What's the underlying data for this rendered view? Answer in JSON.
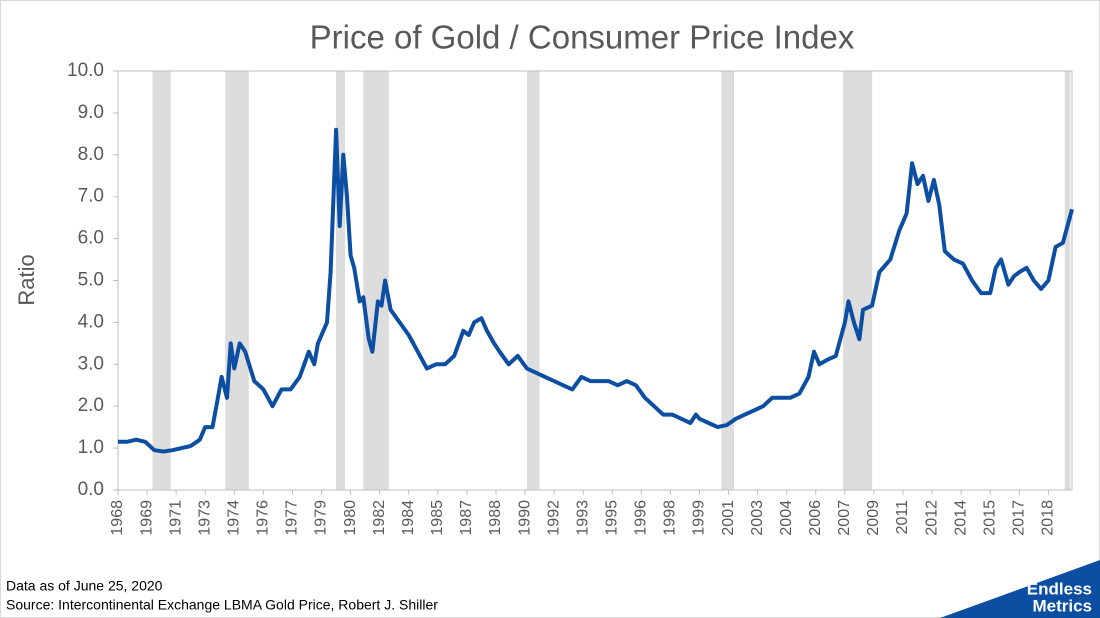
{
  "chart_data": {
    "type": "line",
    "title": "Price of Gold / Consumer Price Index",
    "y_label": "Ratio",
    "notes": [
      "Data as of June 25, 2020",
      "Source: Intercontinental Exchange LBMA Gold Price, Robert J. Shiller"
    ],
    "logo": [
      "Endless",
      "Metrics"
    ],
    "xlim": [
      1968.0,
      2020.5
    ],
    "ylim": [
      0,
      10
    ],
    "yticks": [
      {
        "value": 0,
        "label": "0.0"
      },
      {
        "value": 1,
        "label": "1.0"
      },
      {
        "value": 2,
        "label": "2.0"
      },
      {
        "value": 3,
        "label": "3.0"
      },
      {
        "value": 4,
        "label": "4.0"
      },
      {
        "value": 5,
        "label": "5.0"
      },
      {
        "value": 6,
        "label": "6.0"
      },
      {
        "value": 7,
        "label": "7.0"
      },
      {
        "value": 8,
        "label": "8.0"
      },
      {
        "value": 9,
        "label": "9.0"
      },
      {
        "value": 10,
        "label": "10.0"
      }
    ],
    "xticks": [
      {
        "value": 1968.0,
        "label": "1968"
      },
      {
        "value": 1969.6,
        "label": "1969"
      },
      {
        "value": 1971.2,
        "label": "1971"
      },
      {
        "value": 1972.8,
        "label": "1973"
      },
      {
        "value": 1974.4,
        "label": "1974"
      },
      {
        "value": 1976.0,
        "label": "1976"
      },
      {
        "value": 1977.6,
        "label": "1977"
      },
      {
        "value": 1979.2,
        "label": "1979"
      },
      {
        "value": 1980.8,
        "label": "1980"
      },
      {
        "value": 1982.4,
        "label": "1982"
      },
      {
        "value": 1984.0,
        "label": "1984"
      },
      {
        "value": 1985.6,
        "label": "1985"
      },
      {
        "value": 1987.2,
        "label": "1987"
      },
      {
        "value": 1988.8,
        "label": "1988"
      },
      {
        "value": 1990.4,
        "label": "1990"
      },
      {
        "value": 1992.0,
        "label": "1992"
      },
      {
        "value": 1993.6,
        "label": "1993"
      },
      {
        "value": 1995.2,
        "label": "1995"
      },
      {
        "value": 1996.8,
        "label": "1996"
      },
      {
        "value": 1998.4,
        "label": "1998"
      },
      {
        "value": 2000.0,
        "label": "1999"
      },
      {
        "value": 2001.6,
        "label": "2001"
      },
      {
        "value": 2003.2,
        "label": "2003"
      },
      {
        "value": 2004.8,
        "label": "2004"
      },
      {
        "value": 2006.4,
        "label": "2006"
      },
      {
        "value": 2008.0,
        "label": "2007"
      },
      {
        "value": 2009.6,
        "label": "2009"
      },
      {
        "value": 2011.2,
        "label": "2011"
      },
      {
        "value": 2012.8,
        "label": "2012"
      },
      {
        "value": 2014.4,
        "label": "2014"
      },
      {
        "value": 2016.0,
        "label": "2015"
      },
      {
        "value": 2017.6,
        "label": "2017"
      },
      {
        "value": 2019.2,
        "label": "2018"
      }
    ],
    "recessions": [
      [
        1969.9,
        1970.9
      ],
      [
        1973.9,
        1975.2
      ],
      [
        1980.0,
        1980.5
      ],
      [
        1981.5,
        1982.9
      ],
      [
        1990.5,
        1991.2
      ],
      [
        2001.2,
        2001.9
      ],
      [
        2007.9,
        2009.5
      ],
      [
        2020.1,
        2020.4
      ]
    ],
    "recession_color": "#dddddd",
    "color": "#0b4ea2",
    "x": [
      1968.0,
      1968.5,
      1969.0,
      1969.5,
      1970.0,
      1970.5,
      1971.0,
      1971.5,
      1972.0,
      1972.5,
      1972.8,
      1973.2,
      1973.5,
      1973.7,
      1974.0,
      1974.2,
      1974.4,
      1974.7,
      1975.0,
      1975.5,
      1976.0,
      1976.5,
      1977.0,
      1977.5,
      1978.0,
      1978.5,
      1978.8,
      1979.0,
      1979.5,
      1979.7,
      1980.0,
      1980.2,
      1980.4,
      1980.6,
      1980.8,
      1981.0,
      1981.3,
      1981.5,
      1981.8,
      1982.0,
      1982.3,
      1982.5,
      1982.7,
      1983.0,
      1983.5,
      1984.0,
      1984.5,
      1985.0,
      1985.5,
      1986.0,
      1986.5,
      1987.0,
      1987.3,
      1987.6,
      1988.0,
      1988.3,
      1988.7,
      1989.0,
      1989.5,
      1990.0,
      1990.5,
      1991.0,
      1991.5,
      1992.0,
      1992.5,
      1993.0,
      1993.5,
      1994.0,
      1994.5,
      1995.0,
      1995.5,
      1996.0,
      1996.5,
      1997.0,
      1997.5,
      1998.0,
      1998.5,
      1999.0,
      1999.5,
      1999.8,
      2000.0,
      2000.5,
      2001.0,
      2001.5,
      2002.0,
      2002.5,
      2003.0,
      2003.5,
      2004.0,
      2004.5,
      2005.0,
      2005.5,
      2006.0,
      2006.3,
      2006.6,
      2007.0,
      2007.5,
      2008.0,
      2008.2,
      2008.5,
      2008.8,
      2009.0,
      2009.5,
      2009.9,
      2010.5,
      2011.0,
      2011.4,
      2011.7,
      2012.0,
      2012.3,
      2012.6,
      2012.9,
      2013.2,
      2013.5,
      2014.0,
      2014.5,
      2015.0,
      2015.5,
      2016.0,
      2016.3,
      2016.6,
      2017.0,
      2017.3,
      2017.6,
      2018.0,
      2018.4,
      2018.8,
      2019.2,
      2019.6,
      2020.0,
      2020.5
    ],
    "values": [
      1.15,
      1.15,
      1.2,
      1.15,
      0.95,
      0.92,
      0.95,
      1.0,
      1.05,
      1.2,
      1.5,
      1.5,
      2.2,
      2.7,
      2.2,
      3.5,
      2.9,
      3.5,
      3.3,
      2.6,
      2.4,
      2.0,
      2.4,
      2.4,
      2.7,
      3.3,
      3.0,
      3.5,
      4.0,
      5.2,
      8.6,
      6.3,
      8.0,
      7.0,
      5.6,
      5.3,
      4.5,
      4.6,
      3.6,
      3.3,
      4.5,
      4.4,
      5.0,
      4.3,
      4.0,
      3.7,
      3.3,
      2.9,
      3.0,
      3.0,
      3.2,
      3.8,
      3.7,
      4.0,
      4.1,
      3.8,
      3.5,
      3.3,
      3.0,
      3.2,
      2.9,
      2.8,
      2.7,
      2.6,
      2.5,
      2.4,
      2.7,
      2.6,
      2.6,
      2.6,
      2.5,
      2.6,
      2.5,
      2.2,
      2.0,
      1.8,
      1.8,
      1.7,
      1.6,
      1.8,
      1.7,
      1.6,
      1.5,
      1.55,
      1.7,
      1.8,
      1.9,
      2.0,
      2.2,
      2.2,
      2.2,
      2.3,
      2.7,
      3.3,
      3.0,
      3.1,
      3.2,
      4.0,
      4.5,
      4.0,
      3.6,
      4.3,
      4.4,
      5.2,
      5.5,
      6.2,
      6.6,
      7.8,
      7.3,
      7.5,
      6.9,
      7.4,
      6.8,
      5.7,
      5.5,
      5.4,
      5.0,
      4.7,
      4.7,
      5.3,
      5.5,
      4.9,
      5.1,
      5.2,
      5.3,
      5.0,
      4.8,
      5.0,
      5.8,
      5.9,
      6.7
    ]
  }
}
